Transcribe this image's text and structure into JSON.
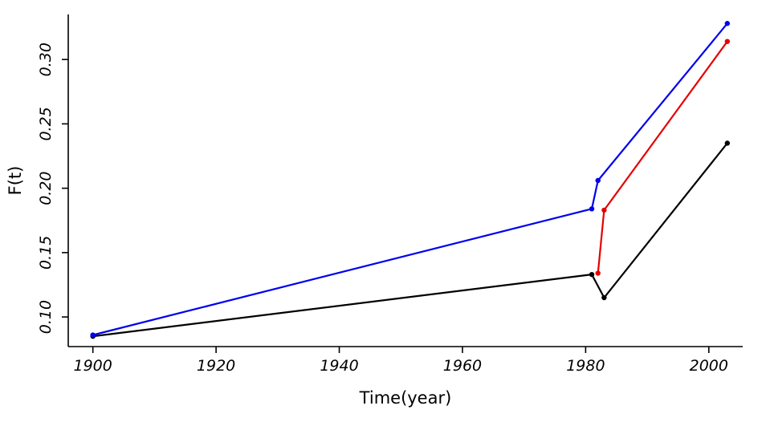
{
  "chart_data": {
    "type": "line",
    "title": "",
    "xlabel": "Time(year)",
    "ylabel": "F(t)",
    "xlim": [
      1896,
      2005.5
    ],
    "ylim": [
      0.077,
      0.335
    ],
    "grid": false,
    "legend": "none",
    "x_ticks": [
      {
        "value": 1900,
        "label": "1900"
      },
      {
        "value": 1920,
        "label": "1920"
      },
      {
        "value": 1940,
        "label": "1940"
      },
      {
        "value": 1960,
        "label": "1960"
      },
      {
        "value": 1980,
        "label": "1980"
      },
      {
        "value": 2000,
        "label": "2000"
      }
    ],
    "y_ticks": [
      {
        "value": 0.1,
        "label": "0.10"
      },
      {
        "value": 0.15,
        "label": "0.15"
      },
      {
        "value": 0.2,
        "label": "0.20"
      },
      {
        "value": 0.25,
        "label": "0.25"
      },
      {
        "value": 0.3,
        "label": "0.30"
      }
    ],
    "series": [
      {
        "name": "black",
        "color": "#000000",
        "points": [
          [
            1900,
            0.085
          ],
          [
            1981,
            0.133
          ],
          [
            1983,
            0.115
          ],
          [
            2003,
            0.235
          ]
        ]
      },
      {
        "name": "blue",
        "color": "#0000ee",
        "points": [
          [
            1900,
            0.086
          ],
          [
            1981,
            0.184
          ],
          [
            1982,
            0.206
          ],
          [
            2003,
            0.328
          ]
        ]
      },
      {
        "name": "red",
        "color": "#e60000",
        "points": [
          [
            1982,
            0.134
          ],
          [
            1983,
            0.183
          ],
          [
            2003,
            0.314
          ]
        ]
      }
    ],
    "style": {
      "line_width": 2.2,
      "marker_radius": 3.2,
      "tick_length": 8
    }
  }
}
